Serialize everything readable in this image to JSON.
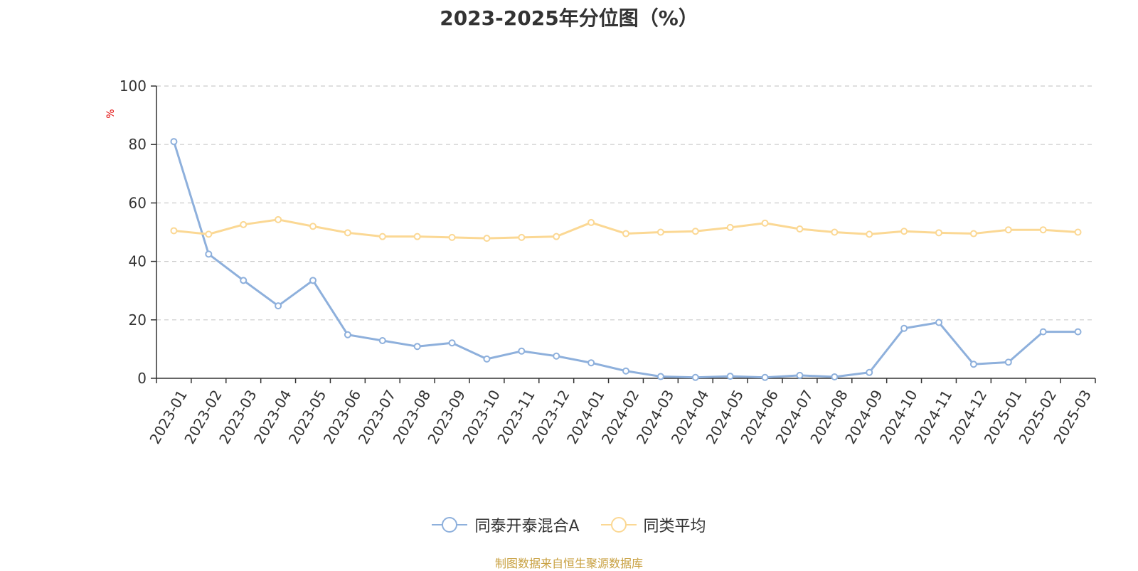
{
  "title": "2023-2025年分位图（%）",
  "source_note": "制图数据来自恒生聚源数据库",
  "colors": {
    "series_a": "#8eb0dc",
    "series_b": "#fbd894",
    "axis": "#333333",
    "grid": "#cccccc",
    "y_unit": "#e00000"
  },
  "chart_data": {
    "type": "line",
    "title": "2023-2025年分位图（%）",
    "ylabel": "%",
    "ylim": [
      0,
      100
    ],
    "yticks": [
      0,
      20,
      40,
      60,
      80,
      100
    ],
    "grid": "horizontal-dashed",
    "legend_position": "bottom",
    "categories": [
      "2023-01",
      "2023-02",
      "2023-03",
      "2023-04",
      "2023-05",
      "2023-06",
      "2023-07",
      "2023-08",
      "2023-09",
      "2023-10",
      "2023-11",
      "2023-12",
      "2024-01",
      "2024-02",
      "2024-03",
      "2024-04",
      "2024-05",
      "2024-06",
      "2024-07",
      "2024-08",
      "2024-09",
      "2024-10",
      "2024-11",
      "2024-12",
      "2025-01",
      "2025-02",
      "2025-03"
    ],
    "series": [
      {
        "name": "同泰开泰混合A",
        "values": [
          81,
          42.5,
          33.5,
          24.8,
          33.5,
          14.9,
          12.9,
          10.9,
          12.1,
          6.6,
          9.3,
          7.6,
          5.3,
          2.5,
          0.6,
          0.3,
          0.7,
          0.3,
          1.0,
          0.5,
          2.0,
          17.1,
          19.1,
          4.8,
          5.5,
          15.9,
          15.9
        ]
      },
      {
        "name": "同类平均",
        "values": [
          50.5,
          49.3,
          52.6,
          54.3,
          52.0,
          49.8,
          48.5,
          48.5,
          48.2,
          47.9,
          48.2,
          48.5,
          53.3,
          49.5,
          50.0,
          50.3,
          51.6,
          53.1,
          51.1,
          50.0,
          49.3,
          50.3,
          49.8,
          49.5,
          50.8,
          50.8,
          50.0
        ]
      }
    ]
  }
}
